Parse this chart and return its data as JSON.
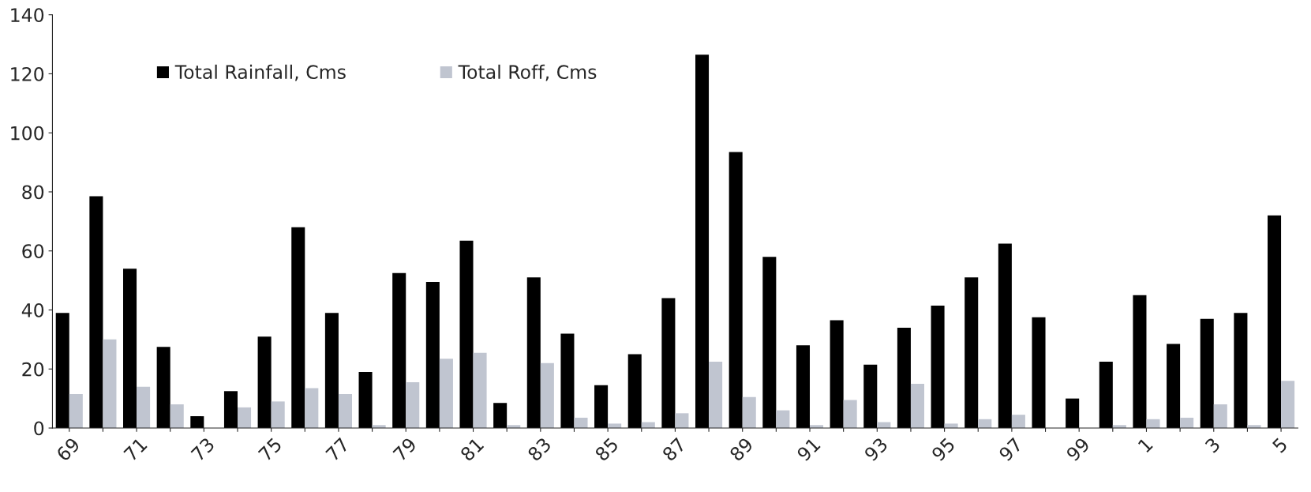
{
  "chart_data": {
    "type": "bar",
    "categories": [
      "69",
      null,
      "71",
      null,
      "73",
      null,
      "75",
      null,
      "77",
      null,
      "79",
      null,
      "81",
      null,
      "83",
      null,
      "85",
      null,
      "87",
      null,
      "89",
      null,
      "91",
      null,
      "93",
      null,
      "95",
      null,
      "97",
      null,
      "99",
      null,
      "1",
      null,
      "3",
      null,
      "5"
    ],
    "series": [
      {
        "name": "Total Rainfall, Cms",
        "color": "#000000",
        "values": [
          39,
          78.5,
          54,
          27.5,
          4,
          12.5,
          31,
          68,
          39,
          19,
          52.5,
          49.5,
          63.5,
          8.5,
          51,
          32,
          14.5,
          25,
          44,
          126.5,
          93.5,
          58,
          28,
          36.5,
          21.5,
          34,
          41.5,
          51,
          62.5,
          37.5,
          10,
          22.5,
          45,
          28.5,
          37,
          39,
          72
        ]
      },
      {
        "name": "Total Roff, Cms",
        "color": "#c0c5d0",
        "values": [
          11.5,
          30,
          14,
          8,
          0,
          7,
          9,
          13.5,
          11.5,
          1,
          15.5,
          23.5,
          25.5,
          1,
          22,
          3.5,
          1.5,
          2,
          5,
          22.5,
          10.5,
          6,
          1,
          9.5,
          2,
          15,
          1.5,
          3,
          4.5,
          0,
          0,
          1,
          3,
          3.5,
          8,
          1,
          16
        ]
      }
    ],
    "ylim": [
      0,
      140
    ],
    "yticks": [
      0,
      20,
      40,
      60,
      80,
      100,
      120,
      140
    ],
    "grid": false,
    "legend": "top left"
  }
}
